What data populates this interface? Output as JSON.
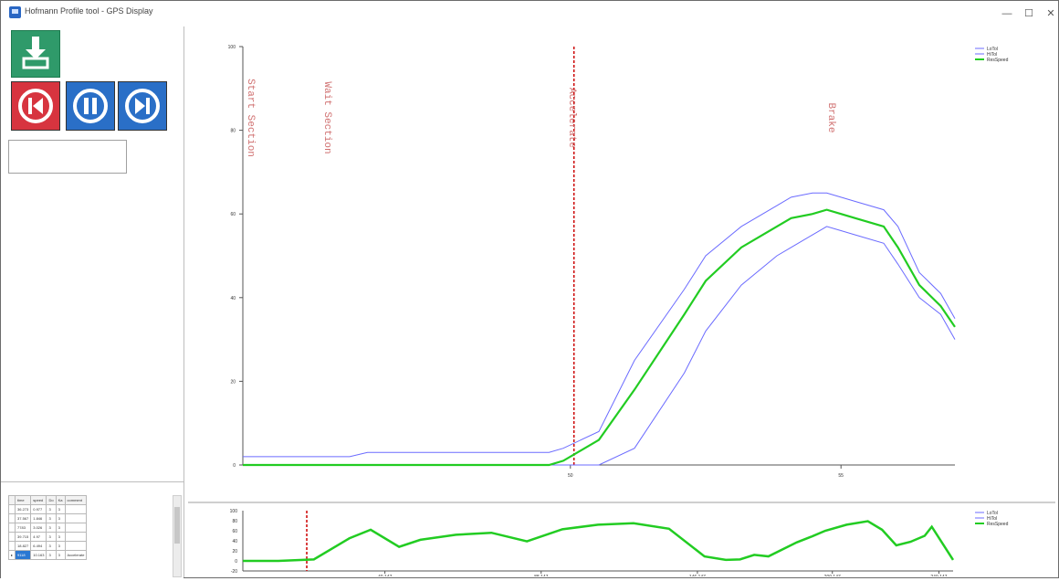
{
  "window": {
    "title": "Hofmann Profile tool - GPS Display",
    "minimize": "—",
    "maximize": "☐",
    "close": "✕"
  },
  "icons": {
    "download": "download-icon",
    "previous": "skip-previous-icon",
    "pause": "pause-icon",
    "next": "skip-next-icon"
  },
  "colors": {
    "download_bg": "#2f9a6a",
    "prev_bg": "#d7343f",
    "nav_bg": "#2a6fc7",
    "tolerance_line": "#6b6bff",
    "speed_line": "#22cc22",
    "marker_line": "#cc0000"
  },
  "table": {
    "headers": [
      "time",
      "speed",
      "Do",
      "Ka",
      "comment"
    ],
    "rows": [
      [
        "36.273",
        "0.977",
        "3",
        "3",
        ""
      ],
      [
        "37.567",
        "1.846",
        "3",
        "3",
        ""
      ],
      [
        "7783",
        "3.026",
        "3",
        "3",
        ""
      ],
      [
        "39.715",
        "4.97",
        "3",
        "3",
        ""
      ],
      [
        "18.827",
        "6.494",
        "3",
        "3",
        ""
      ],
      [
        "9118",
        "10.163",
        "3",
        "3",
        "Accelerate"
      ]
    ],
    "selected_row": 5
  },
  "chart_data": [
    {
      "type": "line",
      "title": "",
      "xlabel": "",
      "ylabel": "",
      "ylim": [
        0,
        100
      ],
      "y_ticks": [
        "0",
        "20",
        "40",
        "60",
        "80",
        "100"
      ],
      "x_ticks": [
        "50",
        "55"
      ],
      "legend": {
        "position": "top-right",
        "entries": [
          "LoTol",
          "HiTol",
          "ResSpeed"
        ]
      },
      "annotations": [
        "Start Section",
        "Wait Section",
        "Accelerate",
        "Brake"
      ],
      "series": [
        {
          "name": "LoTol",
          "x": [
            0,
            15,
            17.5,
            30,
            40,
            43,
            45,
            50,
            55,
            62,
            65,
            70,
            75,
            77,
            80,
            82,
            84,
            86,
            90,
            92,
            95,
            98,
            100
          ],
          "y": [
            0,
            0,
            0,
            0,
            0,
            0,
            0,
            0,
            4,
            22,
            32,
            43,
            50,
            52,
            55,
            57,
            56,
            55,
            53,
            48,
            40,
            36,
            30
          ]
        },
        {
          "name": "HiTol",
          "x": [
            0,
            15,
            17.5,
            30,
            40,
            43,
            45,
            50,
            55,
            62,
            65,
            70,
            75,
            77,
            80,
            82,
            84,
            86,
            90,
            92,
            95,
            98,
            100
          ],
          "y": [
            2,
            2,
            3,
            3,
            3,
            3,
            4,
            8,
            25,
            42,
            50,
            57,
            62,
            64,
            65,
            65,
            64,
            63,
            61,
            57,
            46,
            41,
            35
          ]
        },
        {
          "name": "ResSpeed",
          "x": [
            0,
            15,
            17.5,
            30,
            40,
            43,
            45,
            50,
            55,
            62,
            65,
            70,
            75,
            77,
            80,
            82,
            84,
            86,
            90,
            92,
            95,
            98,
            100
          ],
          "y": [
            0,
            0,
            0,
            0,
            0,
            0,
            1,
            6,
            18,
            36,
            44,
            52,
            57,
            59,
            60,
            61,
            60,
            59,
            57,
            52,
            43,
            38,
            33
          ]
        }
      ]
    },
    {
      "type": "line",
      "title": "",
      "ylim": [
        -20,
        100
      ],
      "y_ticks": [
        "100",
        "80",
        "60",
        "40",
        "20",
        "0",
        "-20"
      ],
      "x_ticks": [
        "40.147",
        "88.147",
        "146.147",
        "200.147",
        "249.147"
      ],
      "legend": {
        "position": "top-right",
        "entries": [
          "LoTol",
          "HiTol",
          "ResSpeed"
        ]
      },
      "series": [
        {
          "name": "ResSpeed",
          "x": [
            0,
            5,
            10,
            15,
            18,
            22,
            25,
            30,
            35,
            40,
            45,
            50,
            55,
            60,
            65,
            68,
            70,
            72,
            74,
            78,
            80,
            82,
            85,
            88,
            90,
            92,
            94,
            96,
            97,
            100
          ],
          "y": [
            0,
            0,
            3,
            45,
            62,
            28,
            42,
            52,
            56,
            39,
            63,
            72,
            75,
            64,
            9,
            2,
            3,
            12,
            9,
            37,
            48,
            60,
            72,
            79,
            62,
            31,
            38,
            50,
            68,
            2
          ]
        }
      ]
    }
  ]
}
